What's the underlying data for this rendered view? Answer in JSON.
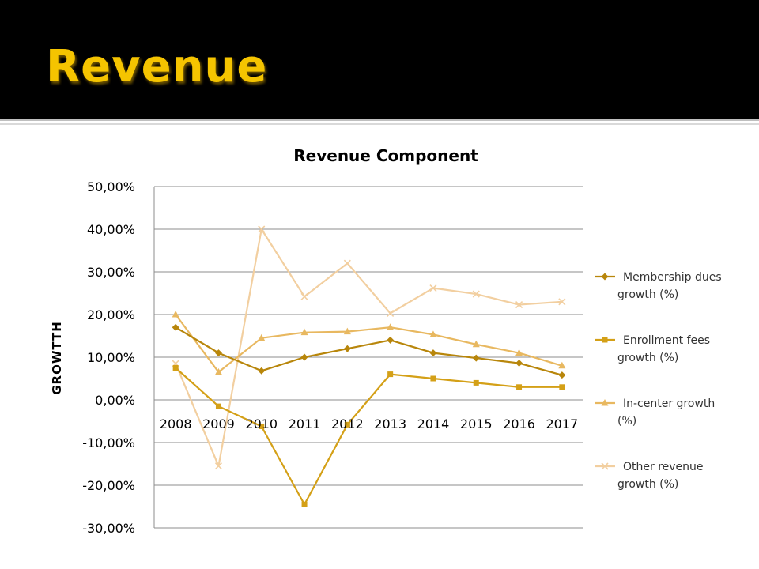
{
  "slide": {
    "title": "Revenue"
  },
  "colors": {
    "header": "#000000",
    "title": "#f5c400"
  },
  "chart_data": {
    "type": "line",
    "title": "Revenue Component",
    "xlabel": "",
    "ylabel": "GROWTTH",
    "categories": [
      "2008",
      "2009",
      "2010",
      "2011",
      "2012",
      "2013",
      "2014",
      "2015",
      "2016",
      "2017"
    ],
    "ylim": [
      -30,
      50
    ],
    "yticks": [
      50,
      40,
      30,
      20,
      10,
      0,
      -10,
      -20,
      -30
    ],
    "ytick_labels": [
      "50,00%",
      "40,00%",
      "30,00%",
      "20,00%",
      "10,00%",
      "0,00%",
      "-10,00%",
      "-20,00%",
      "-30,00%"
    ],
    "grid": true,
    "legend_position": "right",
    "series": [
      {
        "name": "Membership dues growth (%)",
        "name_lines": [
          "Membership dues",
          "growth (%)"
        ],
        "marker": "diamond",
        "color": "#b8860b",
        "values": [
          17,
          11,
          6.8,
          10,
          12,
          14,
          11,
          9.8,
          8.6,
          5.8
        ]
      },
      {
        "name": "Enrollment fees growth (%)",
        "name_lines": [
          "Enrollment fees",
          "growth (%)"
        ],
        "marker": "square",
        "color": "#d4a017",
        "values": [
          7.5,
          -1.5,
          -6.2,
          -24.5,
          -5.8,
          6,
          5,
          4,
          3,
          3
        ]
      },
      {
        "name": "In-center growth (%)",
        "name_lines": [
          "In-center growth",
          "(%)"
        ],
        "marker": "triangle",
        "color": "#e8b860",
        "values": [
          20,
          6.5,
          14.5,
          15.8,
          16,
          17,
          15.3,
          13,
          11,
          8
        ]
      },
      {
        "name": "Other revenue growth (%)",
        "name_lines": [
          "Other revenue",
          "growth (%)"
        ],
        "marker": "x",
        "color": "#f2cfa0",
        "values": [
          8.5,
          -15.5,
          40,
          24.2,
          32,
          20.3,
          26.2,
          24.8,
          22.3,
          23
        ]
      }
    ]
  }
}
